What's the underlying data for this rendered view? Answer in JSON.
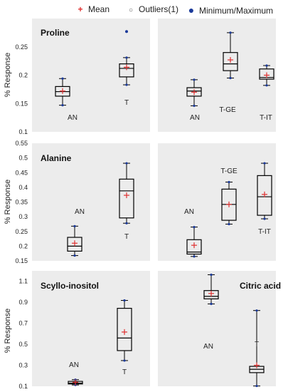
{
  "legend": {
    "mean": "Mean",
    "outliers": "Outliers(1)",
    "minmax": "Minimum/Maximum"
  },
  "colors": {
    "panel_bg": "#ececec",
    "box_stroke": "#000000",
    "mean_marker": "#e03030",
    "minmax_marker": "#1b3a9a",
    "outlier_marker": "#1b3a9a",
    "axis_text": "#222222"
  },
  "chart_data": [
    {
      "type": "box",
      "title": "Proline",
      "ylabel": "% Response",
      "ylim": [
        0.1,
        0.3
      ],
      "yticks": [
        "0.1",
        "0.15",
        "0.2",
        "0.25"
      ],
      "boxes": [
        {
          "label": "AN",
          "min": 0.147,
          "q1": 0.163,
          "median": 0.171,
          "q3": 0.18,
          "max": 0.194,
          "mean": 0.172
        },
        {
          "label": "T",
          "min": 0.183,
          "q1": 0.197,
          "median": 0.212,
          "q3": 0.22,
          "max": 0.231,
          "mean": 0.214,
          "outliers": [
            0.277
          ]
        }
      ]
    },
    {
      "type": "box",
      "title": "",
      "ylim": [
        0.1,
        0.3
      ],
      "boxes": [
        {
          "label": "AN",
          "min": 0.146,
          "q1": 0.163,
          "median": 0.172,
          "q3": 0.178,
          "max": 0.192,
          "mean": 0.17
        },
        {
          "label": "T-GE",
          "min": 0.195,
          "q1": 0.208,
          "median": 0.22,
          "q3": 0.24,
          "max": 0.275,
          "mean": 0.227
        },
        {
          "label": "T-IT",
          "min": 0.182,
          "q1": 0.193,
          "median": 0.196,
          "q3": 0.211,
          "max": 0.217,
          "mean": 0.2
        }
      ]
    },
    {
      "type": "box",
      "title": "Alanine",
      "ylabel": "% Response",
      "ylim": [
        0.15,
        0.55
      ],
      "yticks": [
        "0.15",
        "0.2",
        "0.25",
        "0.3",
        "0.35",
        "0.4",
        "0.45",
        "0.5",
        "0.55"
      ],
      "boxes": [
        {
          "label": "AN",
          "min": 0.168,
          "q1": 0.183,
          "median": 0.2,
          "q3": 0.23,
          "max": 0.268,
          "mean": 0.21
        },
        {
          "label": "T",
          "min": 0.278,
          "q1": 0.296,
          "median": 0.388,
          "q3": 0.428,
          "max": 0.482,
          "mean": 0.373
        }
      ]
    },
    {
      "type": "box",
      "title": "",
      "ylim": [
        0.15,
        0.55
      ],
      "boxes": [
        {
          "label": "AN",
          "min": 0.165,
          "q1": 0.173,
          "median": 0.18,
          "q3": 0.222,
          "max": 0.265,
          "mean": 0.203
        },
        {
          "label": "T-GE",
          "min": 0.275,
          "q1": 0.288,
          "median": 0.342,
          "q3": 0.394,
          "max": 0.418,
          "mean": 0.342
        },
        {
          "label": "T-IT",
          "min": 0.293,
          "q1": 0.305,
          "median": 0.368,
          "q3": 0.44,
          "max": 0.482,
          "mean": 0.376
        }
      ]
    },
    {
      "type": "box",
      "title": "Scyllo-inositol",
      "ylabel": "% Response",
      "ylim": [
        0.1,
        1.2
      ],
      "yticks": [
        "0.1",
        "0.3",
        "0.5",
        "0.7",
        "0.9",
        "1.1"
      ],
      "boxes": [
        {
          "label": "AN",
          "min": 0.113,
          "q1": 0.122,
          "median": 0.13,
          "q3": 0.147,
          "max": 0.163,
          "mean": 0.138
        },
        {
          "label": "T",
          "min": 0.345,
          "q1": 0.44,
          "median": 0.56,
          "q3": 0.843,
          "max": 0.918,
          "mean": 0.617
        }
      ]
    },
    {
      "type": "box",
      "title": "Citric acid",
      "ylim": [
        0.1,
        1.2
      ],
      "boxes": [
        {
          "label": "AN",
          "min": 0.885,
          "q1": 0.933,
          "median": 0.957,
          "q3": 1.012,
          "max": 1.163,
          "mean": 0.984
        },
        {
          "label": "T",
          "min": 0.103,
          "q1": 0.23,
          "median": 0.262,
          "q3": 0.29,
          "max": 0.822,
          "mean": 0.3
        }
      ]
    }
  ]
}
